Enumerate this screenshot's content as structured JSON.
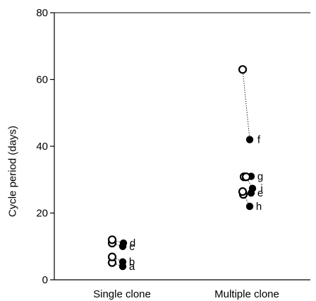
{
  "chart_data": {
    "type": "scatter",
    "title": "",
    "xlabel": "",
    "ylabel": "Cycle period (days)",
    "categories": [
      "Single clone",
      "Multiple clone"
    ],
    "ylim": [
      0,
      80
    ],
    "yticks": [
      0,
      20,
      40,
      60,
      80
    ],
    "grid": false,
    "marker_styles": {
      "open": "white circle, black outline",
      "filled": "black circle"
    },
    "connector_style": "dotted",
    "pairs": [
      {
        "category": "Single clone",
        "label": "a",
        "open": 6,
        "filled": 4
      },
      {
        "category": "Single clone",
        "label": "b",
        "open": 6,
        "filled": 6
      },
      {
        "category": "Single clone",
        "label": "c",
        "open": 11,
        "filled": 10
      },
      {
        "category": "Single clone",
        "label": "d",
        "open": 12,
        "filled": 11
      },
      {
        "category": "Multiple clone",
        "label": "e",
        "open": 26,
        "filled": 26
      },
      {
        "category": "Multiple clone",
        "label": "f",
        "open": 63,
        "filled": 42
      },
      {
        "category": "Multiple clone",
        "label": "g",
        "open": 30,
        "filled": 31
      },
      {
        "category": "Multiple clone",
        "label": "h",
        "open": 26,
        "filled": 22
      },
      {
        "category": "Multiple clone",
        "label": "i",
        "open": 30,
        "filled": 28
      }
    ]
  }
}
